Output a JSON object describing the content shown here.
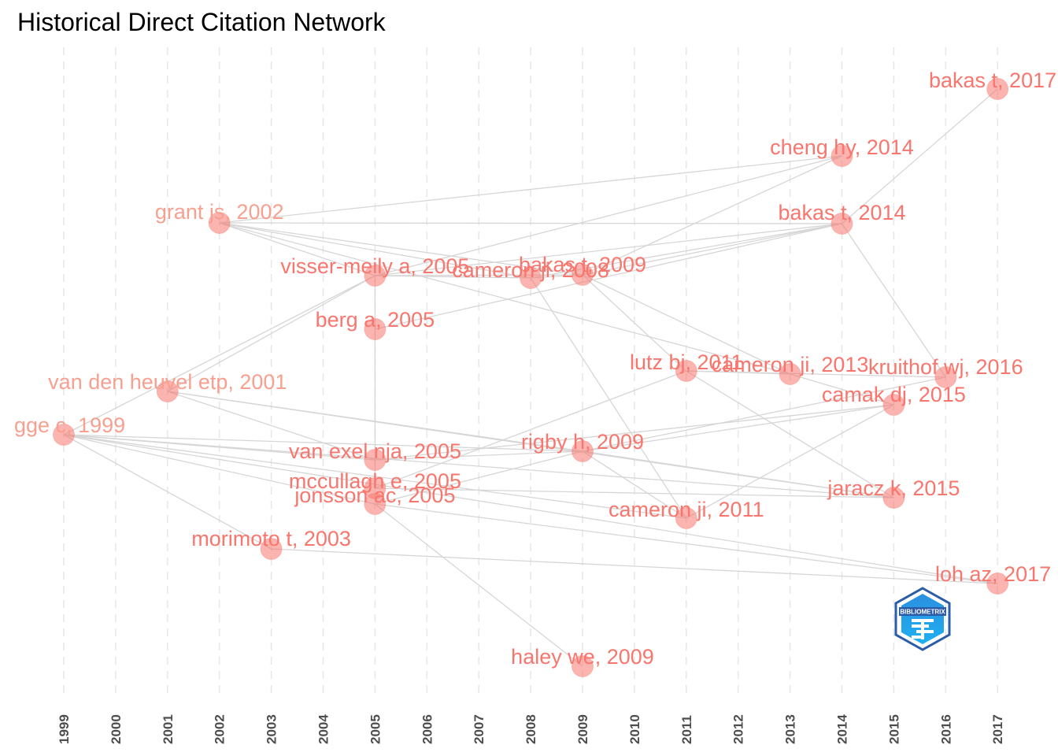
{
  "title": "Historical Direct Citation Network",
  "colors": {
    "node": "#F8766D",
    "label_dark": "#F8766D",
    "label_light": "#F8A090",
    "edge": "#d6d6d6",
    "grid": "#e8e8e8",
    "logo_blue": "#1E88E5",
    "logo_dark": "#2B5CA8"
  },
  "logo": {
    "icon": "bibliometrix-hexagon-logo",
    "text": "BIBLIOMETRIX"
  },
  "chart_data": {
    "type": "network",
    "x_axis": {
      "years": [
        "1999",
        "2000",
        "2001",
        "2002",
        "2003",
        "2004",
        "2005",
        "2006",
        "2007",
        "2008",
        "2009",
        "2010",
        "2011",
        "2012",
        "2013",
        "2014",
        "2015",
        "2016",
        "2017"
      ]
    },
    "nodes": [
      {
        "id": "bakas2017",
        "label": "bakas t, 2017",
        "year": 2017,
        "shade": "dark"
      },
      {
        "id": "cheng2014",
        "label": "cheng hy, 2014",
        "year": 2014,
        "shade": "dark"
      },
      {
        "id": "bakas2014",
        "label": "bakas t, 2014",
        "year": 2014,
        "shade": "dark"
      },
      {
        "id": "grant2002",
        "label": "grant js, 2002",
        "year": 2002,
        "shade": "light"
      },
      {
        "id": "visser2005",
        "label": "visser-meily a, 2005",
        "year": 2005,
        "shade": "dark"
      },
      {
        "id": "cameron2008",
        "label": "cameron ji, 2008",
        "year": 2008,
        "shade": "dark"
      },
      {
        "id": "bakas2009",
        "label": "bakas t, 2009",
        "year": 2009,
        "shade": "dark"
      },
      {
        "id": "berg2005",
        "label": "berg a, 2005",
        "year": 2005,
        "shade": "dark"
      },
      {
        "id": "vdh2001",
        "label": "van den heuvel etp, 2001",
        "year": 2001,
        "shade": "light"
      },
      {
        "id": "lutz2011",
        "label": "lutz bj, 2011",
        "year": 2011,
        "shade": "dark"
      },
      {
        "id": "cameron2013",
        "label": "cameron ji, 2013",
        "year": 2013,
        "shade": "dark"
      },
      {
        "id": "kruithof2016",
        "label": "kruithof wj, 2016",
        "year": 2016,
        "shade": "dark"
      },
      {
        "id": "camak2015",
        "label": "camak dj, 2015",
        "year": 2015,
        "shade": "dark"
      },
      {
        "id": "gge1999",
        "label": "gge c, 1999",
        "year": 1999,
        "shade": "light"
      },
      {
        "id": "vanexel2005",
        "label": "van exel nja, 2005",
        "year": 2005,
        "shade": "dark"
      },
      {
        "id": "rigby2009",
        "label": "rigby h, 2009",
        "year": 2009,
        "shade": "dark"
      },
      {
        "id": "mccullagh2005",
        "label": "mccullagh e, 2005",
        "year": 2005,
        "shade": "dark"
      },
      {
        "id": "jonsson2005",
        "label": "jonsson ac, 2005",
        "year": 2005,
        "shade": "dark"
      },
      {
        "id": "jaracz2015",
        "label": "jaracz k, 2015",
        "year": 2015,
        "shade": "dark"
      },
      {
        "id": "cameron2011",
        "label": "cameron ji, 2011",
        "year": 2011,
        "shade": "dark"
      },
      {
        "id": "morimoto2003",
        "label": "morimoto t, 2003",
        "year": 2003,
        "shade": "dark"
      },
      {
        "id": "loh2017",
        "label": "loh az, 2017",
        "year": 2017,
        "shade": "dark"
      },
      {
        "id": "haley2009",
        "label": "haley we, 2009",
        "year": 2009,
        "shade": "dark"
      }
    ],
    "edges": [
      [
        "grant2002",
        "cheng2014"
      ],
      [
        "grant2002",
        "bakas2014"
      ],
      [
        "grant2002",
        "visser2005"
      ],
      [
        "grant2002",
        "cameron2008"
      ],
      [
        "grant2002",
        "bakas2009"
      ],
      [
        "grant2002",
        "cameron2013"
      ],
      [
        "visser2005",
        "bakas2009"
      ],
      [
        "visser2005",
        "cameron2008"
      ],
      [
        "visser2005",
        "bakas2014"
      ],
      [
        "visser2005",
        "cheng2014"
      ],
      [
        "cameron2008",
        "bakas2009"
      ],
      [
        "cameron2008",
        "cameron2011"
      ],
      [
        "cameron2008",
        "bakas2014"
      ],
      [
        "bakas2009",
        "bakas2014"
      ],
      [
        "bakas2009",
        "cheng2014"
      ],
      [
        "bakas2009",
        "lutz2011"
      ],
      [
        "bakas2009",
        "cameron2013"
      ],
      [
        "bakas2014",
        "bakas2017"
      ],
      [
        "bakas2014",
        "kruithof2016"
      ],
      [
        "berg2005",
        "visser2005"
      ],
      [
        "berg2005",
        "bakas2014"
      ],
      [
        "berg2005",
        "mccullagh2005"
      ],
      [
        "vdh2001",
        "visser2005"
      ],
      [
        "vdh2001",
        "vanexel2005"
      ],
      [
        "vdh2001",
        "rigby2009"
      ],
      [
        "vdh2001",
        "jaracz2015"
      ],
      [
        "gge1999",
        "visser2005"
      ],
      [
        "gge1999",
        "vanexel2005"
      ],
      [
        "gge1999",
        "rigby2009"
      ],
      [
        "gge1999",
        "jaracz2015"
      ],
      [
        "gge1999",
        "cameron2011"
      ],
      [
        "gge1999",
        "morimoto2003"
      ],
      [
        "gge1999",
        "jonsson2005"
      ],
      [
        "gge1999",
        "loh2017"
      ],
      [
        "lutz2011",
        "cameron2013"
      ],
      [
        "lutz2011",
        "kruithof2016"
      ],
      [
        "lutz2011",
        "jaracz2015"
      ],
      [
        "cameron2013",
        "camak2015"
      ],
      [
        "vanexel2005",
        "rigby2009"
      ],
      [
        "vanexel2005",
        "camak2015"
      ],
      [
        "rigby2009",
        "camak2015"
      ],
      [
        "rigby2009",
        "cameron2011"
      ],
      [
        "rigby2009",
        "kruithof2016"
      ],
      [
        "rigby2009",
        "jaracz2015"
      ],
      [
        "mccullagh2005",
        "lutz2011"
      ],
      [
        "mccullagh2005",
        "jaracz2015"
      ],
      [
        "jonsson2005",
        "rigby2009"
      ],
      [
        "jonsson2005",
        "haley2009"
      ],
      [
        "jonsson2005",
        "loh2017"
      ],
      [
        "cameron2011",
        "camak2015"
      ],
      [
        "morimoto2003",
        "loh2017"
      ]
    ]
  }
}
